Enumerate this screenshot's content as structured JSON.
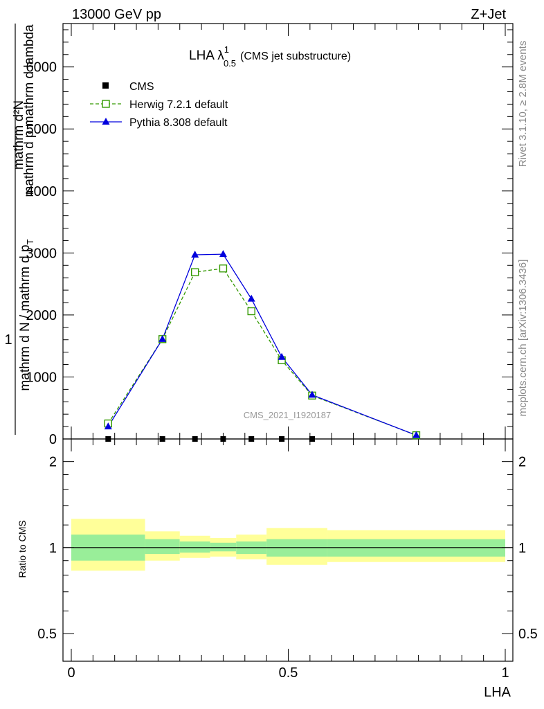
{
  "header": {
    "left": "13000 GeV pp",
    "right": "Z+Jet"
  },
  "side_labels": {
    "rivet": "Rivet 3.1.10, ≥ 2.8M events",
    "mcplots": "mcplots.cern.ch [arXiv:1306.3436]"
  },
  "main_plot": {
    "title_main": "LHA λ",
    "title_sup": "1",
    "title_sub": "0.5",
    "title_suffix": "(CMS jet substructure)",
    "ylabel_num": "1",
    "ylabel_den": "mathrm d N / mathrm d p",
    "ylabel_right_num": "mathrm d²N",
    "ylabel_right_den": "mathrm d p",
    "ylabel_right_den_sub": "T",
    "ylabel_right_den_tail": "mathrm d lambda",
    "ylabel_extra": "mathrm d p mathrm d lambda",
    "watermark": "CMS_2021_I1920187"
  },
  "legend": {
    "cms": "CMS",
    "herwig": "Herwig 7.2.1 default",
    "pythia": "Pythia 8.308 default"
  },
  "ratio_plot": {
    "ylabel": "Ratio to CMS"
  },
  "xaxis": {
    "label": "LHA",
    "ticks": [
      "0",
      "0.5",
      "1"
    ]
  },
  "colors": {
    "herwig": "#339900",
    "pythia": "#0000dd",
    "band_inner": "#99ee99",
    "band_outer": "#ffff99"
  },
  "chart_data": [
    {
      "type": "line",
      "title": "LHA λ^1_0.5 (CMS jet substructure)",
      "xlabel": "LHA",
      "xlim": [
        0,
        1
      ],
      "ylim": [
        0,
        6700
      ],
      "yticks": [
        0,
        1000,
        2000,
        3000,
        4000,
        5000,
        6000
      ],
      "ytick_labels": [
        "0",
        "1000",
        "2000",
        "3000",
        "4000",
        "5000",
        "6000"
      ],
      "legend_position": "top-left",
      "series": [
        {
          "name": "CMS",
          "marker": "square",
          "x": [
            0.085,
            0.21,
            0.285,
            0.35,
            0.415,
            0.485,
            0.555
          ],
          "y": [
            0,
            0,
            0,
            0,
            0,
            0,
            0
          ]
        },
        {
          "name": "Herwig 7.2.1 default",
          "marker": "open-square",
          "line": "dashed",
          "x": [
            0.085,
            0.21,
            0.285,
            0.35,
            0.415,
            0.485,
            0.555,
            0.795
          ],
          "y": [
            250,
            1610,
            2690,
            2750,
            2060,
            1270,
            700,
            60
          ]
        },
        {
          "name": "Pythia 8.308 default",
          "marker": "triangle",
          "line": "solid",
          "x": [
            0.085,
            0.21,
            0.285,
            0.35,
            0.415,
            0.485,
            0.555,
            0.795
          ],
          "y": [
            200,
            1610,
            2970,
            2980,
            2260,
            1320,
            710,
            60
          ]
        }
      ]
    },
    {
      "type": "area",
      "ylabel": "Ratio to CMS",
      "xlim": [
        0,
        1
      ],
      "scale": "log",
      "ylim": [
        0.4,
        2.4
      ],
      "yticks": [
        0.5,
        1,
        2
      ],
      "ytick_labels": [
        "0.5",
        "1",
        "2"
      ],
      "reference_line": 1,
      "bins": [
        0,
        0.17,
        0.25,
        0.32,
        0.38,
        0.45,
        0.59,
        1
      ],
      "band_inner": [
        [
          0.9,
          1.11
        ],
        [
          0.95,
          1.07
        ],
        [
          0.96,
          1.05
        ],
        [
          0.97,
          1.04
        ],
        [
          0.95,
          1.05
        ],
        [
          0.93,
          1.07
        ],
        [
          0.93,
          1.07
        ]
      ],
      "band_outer": [
        [
          0.83,
          1.26
        ],
        [
          0.9,
          1.14
        ],
        [
          0.92,
          1.1
        ],
        [
          0.93,
          1.08
        ],
        [
          0.91,
          1.11
        ],
        [
          0.87,
          1.17
        ],
        [
          0.89,
          1.15
        ]
      ]
    }
  ]
}
